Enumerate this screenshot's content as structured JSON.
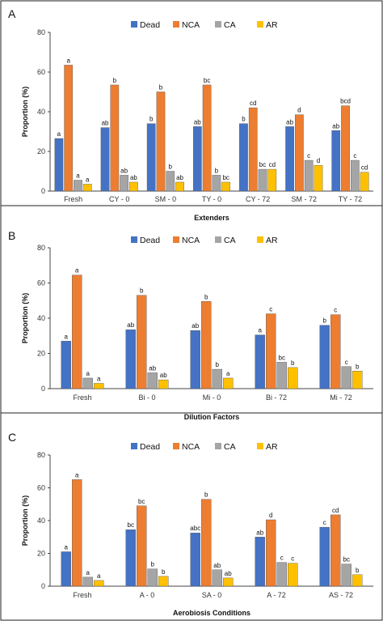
{
  "chart_data": [
    {
      "type": "bar",
      "panel_label": "A",
      "xlabel": "Extenders",
      "ylabel": "Proportion (%)",
      "ylim": [
        0,
        80
      ],
      "yticks": [
        0,
        20,
        40,
        60,
        80
      ],
      "grid": false,
      "legend": "top-center",
      "categories": [
        "Fresh",
        "CY - 0",
        "SM - 0",
        "TY - 0",
        "CY - 72",
        "SM - 72",
        "TY - 72"
      ],
      "series": [
        {
          "name": "Dead",
          "color": "#4472C4",
          "values": [
            26.5,
            32,
            34,
            32.5,
            34,
            32.5,
            30.5
          ],
          "labels": [
            "a",
            "ab",
            "b",
            "ab",
            "b",
            "ab",
            "ab"
          ]
        },
        {
          "name": "NCA",
          "color": "#ED7D31",
          "values": [
            63.5,
            53.5,
            50,
            53.5,
            42,
            38.5,
            43
          ],
          "labels": [
            "a",
            "b",
            "b",
            "bc",
            "cd",
            "d",
            "bcd"
          ]
        },
        {
          "name": "CA",
          "color": "#A5A5A5",
          "values": [
            5.5,
            8,
            10,
            8,
            11,
            15.5,
            15.5
          ],
          "labels": [
            "a",
            "ab",
            "b",
            "b",
            "bc",
            "c",
            "c"
          ]
        },
        {
          "name": "AR",
          "color": "#FFC000",
          "values": [
            3.5,
            4.5,
            4.5,
            4.5,
            11,
            13,
            9.5
          ],
          "labels": [
            "a",
            "ab",
            "ab",
            "bc",
            "cd",
            "d",
            "cd"
          ]
        }
      ]
    },
    {
      "type": "bar",
      "panel_label": "B",
      "xlabel": "Dilution Factors",
      "ylabel": "Proportion (%)",
      "ylim": [
        0,
        80
      ],
      "yticks": [
        0,
        20,
        40,
        60,
        80
      ],
      "grid": false,
      "legend": "top-center",
      "categories": [
        "Fresh",
        "Bi - 0",
        "Mi - 0",
        "Bi - 72",
        "Mi - 72"
      ],
      "series": [
        {
          "name": "Dead",
          "color": "#4472C4",
          "values": [
            27,
            33.5,
            33,
            30.5,
            36
          ],
          "labels": [
            "a",
            "ab",
            "ab",
            "a",
            "b"
          ]
        },
        {
          "name": "NCA",
          "color": "#ED7D31",
          "values": [
            64.5,
            53,
            49.5,
            42.5,
            42
          ],
          "labels": [
            "a",
            "b",
            "b",
            "c",
            "c"
          ]
        },
        {
          "name": "CA",
          "color": "#A5A5A5",
          "values": [
            6,
            9,
            11,
            15,
            12.5
          ],
          "labels": [
            "a",
            "ab",
            "b",
            "bc",
            "c"
          ]
        },
        {
          "name": "AR",
          "color": "#FFC000",
          "values": [
            3,
            5,
            6,
            12,
            10
          ],
          "labels": [
            "a",
            "ab",
            "a",
            "b",
            "b"
          ]
        }
      ]
    },
    {
      "type": "bar",
      "panel_label": "C",
      "xlabel": "Aerobiosis Conditions",
      "ylabel": "Proportion (%)",
      "ylim": [
        0,
        80
      ],
      "yticks": [
        0,
        20,
        40,
        60,
        80
      ],
      "grid": false,
      "legend": "top-center",
      "categories": [
        "Fresh",
        "A - 0",
        "SA - 0",
        "A - 72",
        "AS - 72"
      ],
      "series": [
        {
          "name": "Dead",
          "color": "#4472C4",
          "values": [
            21,
            34.5,
            32.5,
            30,
            36
          ],
          "labels": [
            "a",
            "bc",
            "abc",
            "ab",
            "c"
          ]
        },
        {
          "name": "NCA",
          "color": "#ED7D31",
          "values": [
            65,
            49,
            53,
            40.5,
            43.5
          ],
          "labels": [
            "a",
            "bc",
            "b",
            "d",
            "cd"
          ]
        },
        {
          "name": "CA",
          "color": "#A5A5A5",
          "values": [
            5.5,
            10.5,
            10,
            14.5,
            13.5
          ],
          "labels": [
            "a",
            "b",
            "ab",
            "c",
            "bc"
          ]
        },
        {
          "name": "AR",
          "color": "#FFC000",
          "values": [
            3.5,
            6,
            5,
            14,
            7
          ],
          "labels": [
            "a",
            "b",
            "ab",
            "c",
            "b"
          ]
        }
      ]
    }
  ]
}
